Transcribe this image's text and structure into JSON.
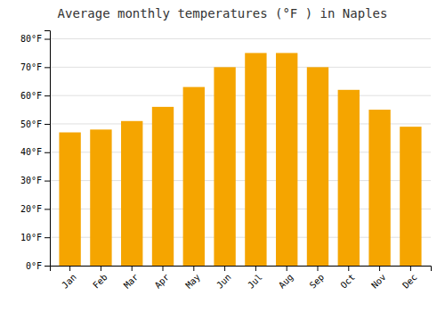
{
  "chart_data": {
    "type": "bar",
    "title": "Average monthly temperatures (°F ) in Naples",
    "categories": [
      "Jan",
      "Feb",
      "Mar",
      "Apr",
      "May",
      "Jun",
      "Jul",
      "Aug",
      "Sep",
      "Oct",
      "Nov",
      "Dec"
    ],
    "values": [
      47,
      48,
      51,
      56,
      63,
      70,
      75,
      75,
      70,
      62,
      55,
      49
    ],
    "color": "#F5A500",
    "ylim": [
      0,
      83
    ],
    "yticks": [
      {
        "value": 0,
        "label": "0°F"
      },
      {
        "value": 10,
        "label": "10°F"
      },
      {
        "value": 20,
        "label": "20°F"
      },
      {
        "value": 30,
        "label": "30°F"
      },
      {
        "value": 40,
        "label": "40°F"
      },
      {
        "value": 50,
        "label": "50°F"
      },
      {
        "value": 60,
        "label": "60°F"
      },
      {
        "value": 70,
        "label": "70°F"
      },
      {
        "value": 80,
        "label": "80°F"
      }
    ],
    "grid": true
  }
}
